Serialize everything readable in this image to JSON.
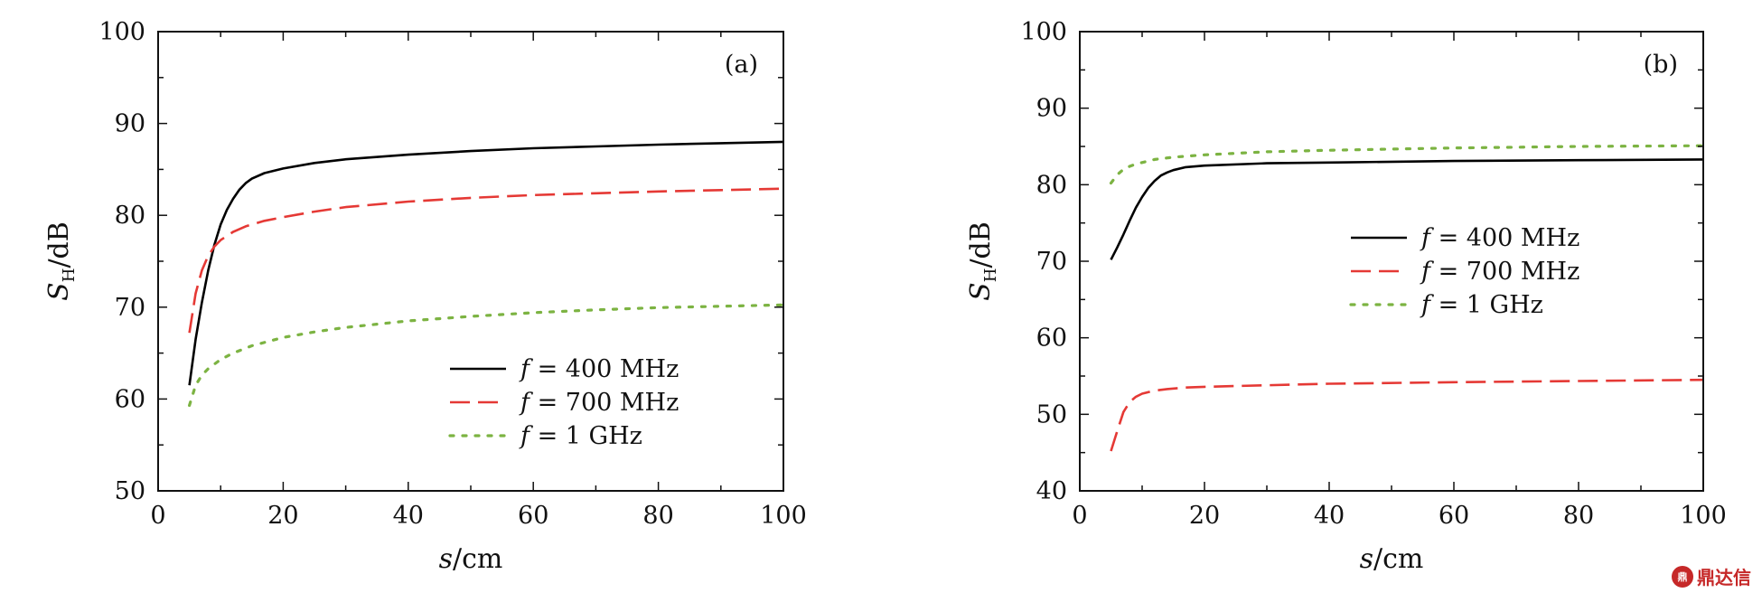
{
  "chart_data": [
    {
      "type": "line",
      "panel_label": "(a)",
      "xlabel": "s/cm",
      "ylabel": "S_H/dB",
      "xlim": [
        0,
        100
      ],
      "ylim": [
        50,
        100
      ],
      "xticks": [
        0,
        20,
        40,
        60,
        80,
        100
      ],
      "yticks": [
        50,
        60,
        70,
        80,
        90,
        100
      ],
      "legend_position": "lower-right",
      "series": [
        {
          "name": "f = 400 MHz",
          "color": "#000000",
          "style": "solid",
          "x": [
            5,
            6,
            7,
            8,
            9,
            10,
            11,
            12,
            13,
            14,
            15,
            17,
            20,
            25,
            30,
            40,
            50,
            60,
            70,
            80,
            90,
            100
          ],
          "y": [
            61.5,
            66.5,
            70.5,
            74.0,
            76.8,
            79.0,
            80.6,
            81.8,
            82.8,
            83.5,
            84.0,
            84.6,
            85.1,
            85.7,
            86.1,
            86.6,
            87.0,
            87.3,
            87.5,
            87.7,
            87.85,
            88.0
          ]
        },
        {
          "name": "f = 700 MHz",
          "color": "#e53935",
          "style": "dashed",
          "x": [
            5,
            6,
            7,
            8,
            9,
            10,
            12,
            14,
            17,
            20,
            25,
            30,
            40,
            50,
            60,
            70,
            80,
            90,
            100
          ],
          "y": [
            67.2,
            71.5,
            74.0,
            75.6,
            76.6,
            77.3,
            78.2,
            78.8,
            79.4,
            79.8,
            80.4,
            80.9,
            81.5,
            81.9,
            82.2,
            82.4,
            82.6,
            82.75,
            82.9
          ]
        },
        {
          "name": "f = 1 GHz",
          "color": "#7cb342",
          "style": "dotted",
          "x": [
            5,
            6,
            7,
            8,
            10,
            12,
            15,
            20,
            25,
            30,
            40,
            50,
            60,
            70,
            80,
            90,
            100
          ],
          "y": [
            59.3,
            61.5,
            62.6,
            63.3,
            64.3,
            65.0,
            65.8,
            66.7,
            67.3,
            67.8,
            68.5,
            69.0,
            69.4,
            69.7,
            69.95,
            70.1,
            70.25
          ]
        }
      ]
    },
    {
      "type": "line",
      "panel_label": "(b)",
      "xlabel": "s/cm",
      "ylabel": "S_H/dB",
      "xlim": [
        0,
        100
      ],
      "ylim": [
        40,
        100
      ],
      "xticks": [
        0,
        20,
        40,
        60,
        80,
        100
      ],
      "yticks": [
        40,
        50,
        60,
        70,
        80,
        90,
        100
      ],
      "legend_position": "center-right",
      "series": [
        {
          "name": "f = 400 MHz",
          "color": "#000000",
          "style": "solid",
          "x": [
            5,
            6,
            7,
            8,
            9,
            10,
            11,
            12,
            13,
            14,
            15,
            17,
            20,
            30,
            40,
            60,
            80,
            100
          ],
          "y": [
            70.2,
            71.8,
            73.5,
            75.3,
            77.0,
            78.4,
            79.6,
            80.5,
            81.2,
            81.6,
            81.9,
            82.3,
            82.5,
            82.8,
            82.9,
            83.1,
            83.2,
            83.3
          ]
        },
        {
          "name": "f = 700 MHz",
          "color": "#e53935",
          "style": "dashed",
          "x": [
            5,
            6,
            7,
            8,
            9,
            10,
            11,
            12,
            14,
            17,
            20,
            30,
            40,
            60,
            80,
            100
          ],
          "y": [
            45.2,
            47.8,
            50.3,
            51.6,
            52.3,
            52.7,
            52.9,
            53.1,
            53.3,
            53.5,
            53.6,
            53.8,
            54.0,
            54.2,
            54.35,
            54.5
          ]
        },
        {
          "name": "f = 1 GHz",
          "color": "#7cb342",
          "style": "dotted",
          "x": [
            5,
            6,
            7,
            8,
            9,
            10,
            12,
            15,
            20,
            30,
            40,
            60,
            80,
            100
          ],
          "y": [
            80.2,
            81.3,
            82.0,
            82.4,
            82.7,
            82.9,
            83.3,
            83.6,
            83.9,
            84.3,
            84.5,
            84.8,
            85.0,
            85.1
          ]
        }
      ]
    }
  ],
  "watermark": {
    "logo": "鼎",
    "text": "鼎达信"
  }
}
